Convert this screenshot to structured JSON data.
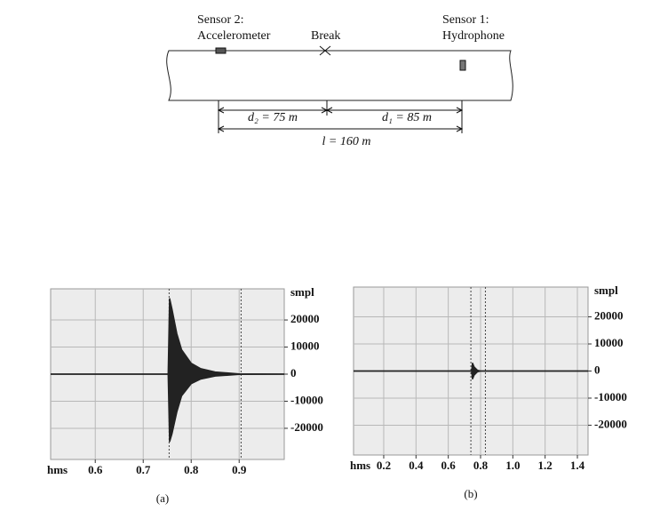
{
  "diagram": {
    "sensor2_title": "Sensor 2:",
    "sensor2_name": "Accelerometer",
    "break_label": "Break",
    "sensor1_title": "Sensor 1:",
    "sensor1_name": "Hydrophone",
    "d2_label": "d₂ = 75 m",
    "d1_label": "d₁ = 85 m",
    "l_label": "l = 160 m"
  },
  "chart_data": [
    {
      "type": "area",
      "caption": "(a)",
      "x_label": "hms",
      "y_label": "smpl",
      "xlim": [
        0.507,
        0.994
      ],
      "xticks": [
        0.6,
        0.7,
        0.8,
        0.9
      ],
      "ylim": [
        -31500,
        31500
      ],
      "yticks": [
        20000,
        10000,
        0,
        -10000,
        -20000
      ],
      "grid": true,
      "markers": [
        0.754,
        0.904
      ],
      "x": [
        0.507,
        0.752,
        0.755,
        0.76,
        0.77,
        0.78,
        0.8,
        0.82,
        0.85,
        0.9,
        0.994
      ],
      "series": [
        {
          "color": "#222222",
          "values": [
            0,
            0,
            28000,
            24000,
            15000,
            9000,
            4000,
            2000,
            800,
            100,
            0
          ]
        },
        {
          "color": "#222222",
          "values": [
            0,
            0,
            -25000,
            -22000,
            -14000,
            -8000,
            -3500,
            -1800,
            -700,
            -100,
            0
          ]
        }
      ]
    },
    {
      "type": "area",
      "caption": "(b)",
      "x_label": "hms",
      "y_label": "smpl",
      "xlim": [
        0.013,
        1.466
      ],
      "xticks": [
        0.2,
        0.4,
        0.6,
        0.8,
        {
          "value": 1,
          "label": "1.0"
        },
        1.2,
        1.4
      ],
      "ylim": [
        -31000,
        31000
      ],
      "yticks": [
        20000,
        10000,
        0,
        -10000,
        -20000
      ],
      "grid": true,
      "markers": [
        0.74,
        0.83
      ],
      "x": [
        0.013,
        0.745,
        0.75,
        0.76,
        0.78,
        0.8,
        1.466
      ],
      "series": [
        {
          "color": "#222222",
          "values": [
            0,
            0,
            3000,
            1500,
            300,
            0,
            0
          ]
        },
        {
          "color": "#222222",
          "values": [
            0,
            0,
            -3000,
            -1500,
            -300,
            0,
            0
          ]
        }
      ]
    }
  ]
}
